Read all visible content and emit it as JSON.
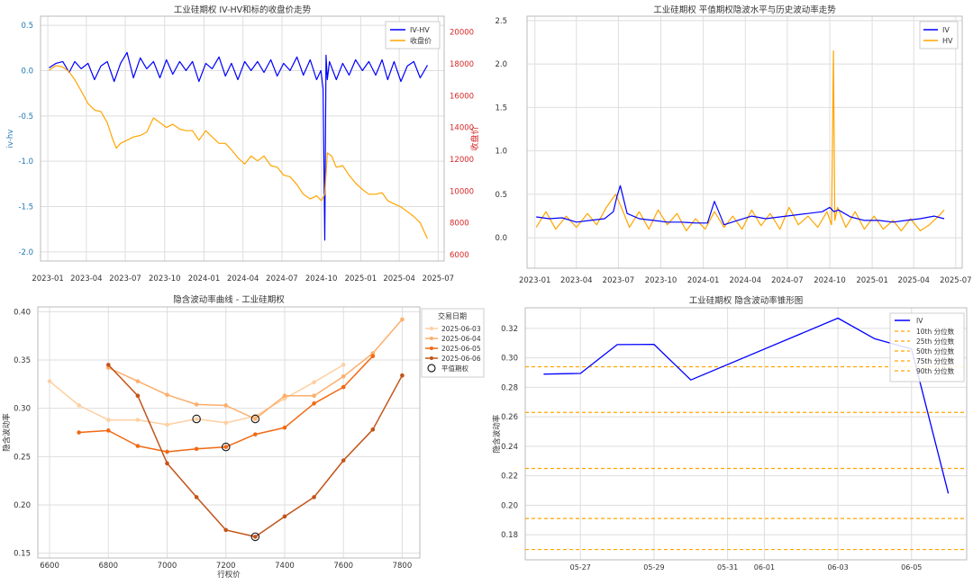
{
  "chart_data": [
    {
      "type": "line",
      "title": "工业硅期权 IV-HV和标的收盘价走势",
      "xlabel": "",
      "ylabel_left": "iv-hv",
      "ylabel_right": "收盘价",
      "x_ticks": [
        "2023-01",
        "2023-04",
        "2023-07",
        "2023-10",
        "2024-01",
        "2024-04",
        "2024-07",
        "2024-10",
        "2025-01",
        "2025-04",
        "2025-07"
      ],
      "ylim_left": [
        -2.1,
        0.6
      ],
      "yticks_left": [
        0.5,
        0.0,
        -0.5,
        -1.0,
        -1.5,
        -2.0
      ],
      "ylim_right": [
        5600,
        21000
      ],
      "yticks_right": [
        20000,
        18000,
        16000,
        14000,
        12000,
        10000,
        8000,
        6000
      ],
      "grid": true,
      "legend": "top-right",
      "colors": {
        "left_axis": "#1f77b4",
        "right_axis": "#d62728"
      },
      "series": [
        {
          "name": "IV-HV",
          "color": "#0000ff",
          "axis": "left",
          "x": [
            "2023-01-04",
            "2023-01-20",
            "2023-02-05",
            "2023-02-20",
            "2023-03-05",
            "2023-03-20",
            "2023-04-05",
            "2023-04-20",
            "2023-05-05",
            "2023-05-20",
            "2023-06-05",
            "2023-06-20",
            "2023-07-05",
            "2023-07-20",
            "2023-08-05",
            "2023-08-20",
            "2023-09-05",
            "2023-09-20",
            "2023-10-05",
            "2023-10-20",
            "2023-11-05",
            "2023-11-20",
            "2023-12-05",
            "2023-12-20",
            "2024-01-05",
            "2024-01-20",
            "2024-02-05",
            "2024-02-20",
            "2024-03-05",
            "2024-03-20",
            "2024-04-05",
            "2024-04-20",
            "2024-05-05",
            "2024-05-20",
            "2024-06-05",
            "2024-06-20",
            "2024-07-05",
            "2024-07-20",
            "2024-08-05",
            "2024-08-20",
            "2024-09-05",
            "2024-09-20",
            "2024-09-30",
            "2024-10-05",
            "2024-10-09",
            "2024-10-12",
            "2024-10-15",
            "2024-10-20",
            "2024-11-05",
            "2024-11-20",
            "2024-12-05",
            "2024-12-20",
            "2025-01-05",
            "2025-01-20",
            "2025-02-05",
            "2025-02-20",
            "2025-03-05",
            "2025-03-20",
            "2025-04-05",
            "2025-04-20",
            "2025-05-05",
            "2025-05-20",
            "2025-06-06"
          ],
          "values": [
            0.03,
            0.08,
            0.1,
            -0.02,
            0.1,
            0.02,
            0.08,
            -0.1,
            0.05,
            0.1,
            -0.12,
            0.08,
            0.2,
            -0.08,
            0.14,
            0.02,
            0.1,
            -0.08,
            0.12,
            -0.04,
            0.1,
            0.0,
            0.1,
            -0.12,
            0.08,
            0.02,
            0.15,
            -0.06,
            0.08,
            -0.1,
            0.1,
            0.0,
            0.1,
            -0.02,
            0.12,
            -0.06,
            0.08,
            0.0,
            0.15,
            -0.05,
            0.12,
            -0.1,
            0.0,
            -0.2,
            -1.87,
            0.17,
            -0.1,
            0.1,
            -0.1,
            0.08,
            -0.05,
            0.12,
            0.0,
            0.1,
            -0.05,
            0.12,
            -0.1,
            0.1,
            -0.12,
            0.05,
            0.1,
            -0.08,
            0.06
          ]
        },
        {
          "name": "收盘价",
          "color": "#ffa500",
          "axis": "right",
          "x": [
            "2023-01-04",
            "2023-01-20",
            "2023-02-05",
            "2023-02-20",
            "2023-03-05",
            "2023-03-20",
            "2023-04-05",
            "2023-04-20",
            "2023-05-05",
            "2023-05-20",
            "2023-06-01",
            "2023-06-10",
            "2023-06-20",
            "2023-07-05",
            "2023-07-20",
            "2023-08-05",
            "2023-08-20",
            "2023-09-05",
            "2023-09-20",
            "2023-10-05",
            "2023-10-20",
            "2023-11-05",
            "2023-11-20",
            "2023-12-05",
            "2023-12-20",
            "2024-01-05",
            "2024-01-20",
            "2024-02-05",
            "2024-02-20",
            "2024-03-05",
            "2024-03-20",
            "2024-04-05",
            "2024-04-20",
            "2024-05-05",
            "2024-05-20",
            "2024-06-05",
            "2024-06-20",
            "2024-07-05",
            "2024-07-20",
            "2024-08-05",
            "2024-08-20",
            "2024-09-05",
            "2024-09-20",
            "2024-10-01",
            "2024-10-09",
            "2024-10-15",
            "2024-10-25",
            "2024-11-05",
            "2024-11-20",
            "2024-12-05",
            "2024-12-20",
            "2025-01-05",
            "2025-01-20",
            "2025-02-05",
            "2025-02-20",
            "2025-03-05",
            "2025-03-20",
            "2025-04-05",
            "2025-04-20",
            "2025-05-05",
            "2025-05-20",
            "2025-06-06"
          ],
          "values": [
            17600,
            17900,
            17800,
            17500,
            17000,
            16300,
            15500,
            15100,
            15000,
            14300,
            13300,
            12700,
            13000,
            13200,
            13400,
            13500,
            13700,
            14600,
            14300,
            14000,
            14200,
            13900,
            13800,
            13800,
            13200,
            13800,
            13400,
            13000,
            13000,
            12600,
            12100,
            11700,
            12200,
            11900,
            12200,
            11600,
            11500,
            11000,
            10900,
            10400,
            9800,
            9500,
            9700,
            9400,
            9800,
            12400,
            12200,
            11500,
            11600,
            11000,
            10500,
            10100,
            9800,
            9800,
            9900,
            9400,
            9200,
            9000,
            8700,
            8400,
            8000,
            7000
          ]
        }
      ]
    },
    {
      "type": "line",
      "title": "工业硅期权 平值期权隐波水平与历史波动率走势",
      "xlabel": "",
      "ylabel": "",
      "x_ticks": [
        "2023-01",
        "2023-04",
        "2023-07",
        "2023-10",
        "2024-01",
        "2024-04",
        "2024-07",
        "2024-10",
        "2025-01",
        "2025-04",
        "2025-07"
      ],
      "ylim": [
        -0.35,
        2.55
      ],
      "yticks": [
        0.0,
        0.5,
        1.0,
        1.5,
        2.0,
        2.5
      ],
      "grid": true,
      "legend": "top-right",
      "series": [
        {
          "name": "IV",
          "color": "#0000ff",
          "x": [
            "2023-01-04",
            "2023-02-01",
            "2023-03-01",
            "2023-04-01",
            "2023-05-01",
            "2023-06-01",
            "2023-06-20",
            "2023-06-28",
            "2023-07-05",
            "2023-07-20",
            "2023-08-15",
            "2023-09-15",
            "2023-10-15",
            "2023-11-15",
            "2023-12-15",
            "2024-01-10",
            "2024-01-25",
            "2024-02-15",
            "2024-03-15",
            "2024-04-15",
            "2024-05-15",
            "2024-06-15",
            "2024-07-15",
            "2024-08-15",
            "2024-09-15",
            "2024-10-01",
            "2024-10-10",
            "2024-10-20",
            "2024-11-15",
            "2024-12-15",
            "2025-01-15",
            "2025-02-15",
            "2025-03-15",
            "2025-04-15",
            "2025-05-15",
            "2025-06-06"
          ],
          "values": [
            0.24,
            0.22,
            0.23,
            0.18,
            0.2,
            0.22,
            0.3,
            0.48,
            0.6,
            0.28,
            0.22,
            0.2,
            0.18,
            0.18,
            0.17,
            0.17,
            0.42,
            0.15,
            0.2,
            0.25,
            0.22,
            0.24,
            0.26,
            0.28,
            0.3,
            0.35,
            0.3,
            0.32,
            0.24,
            0.2,
            0.2,
            0.18,
            0.2,
            0.22,
            0.25,
            0.22
          ]
        },
        {
          "name": "HV",
          "color": "#ffa500",
          "x": [
            "2023-01-04",
            "2023-01-25",
            "2023-02-15",
            "2023-03-10",
            "2023-04-01",
            "2023-04-25",
            "2023-05-15",
            "2023-06-05",
            "2023-06-25",
            "2023-07-05",
            "2023-07-25",
            "2023-08-15",
            "2023-09-05",
            "2023-09-25",
            "2023-10-15",
            "2023-11-05",
            "2023-11-25",
            "2023-12-15",
            "2024-01-05",
            "2024-01-25",
            "2024-02-15",
            "2024-03-05",
            "2024-03-25",
            "2024-04-15",
            "2024-05-05",
            "2024-05-25",
            "2024-06-15",
            "2024-07-05",
            "2024-07-25",
            "2024-08-15",
            "2024-09-05",
            "2024-09-25",
            "2024-10-05",
            "2024-10-09",
            "2024-10-12",
            "2024-10-18",
            "2024-11-05",
            "2024-11-25",
            "2024-12-15",
            "2025-01-05",
            "2025-01-25",
            "2025-02-15",
            "2025-03-05",
            "2025-03-25",
            "2025-04-15",
            "2025-05-05",
            "2025-05-25",
            "2025-06-06"
          ],
          "values": [
            0.12,
            0.3,
            0.1,
            0.25,
            0.12,
            0.28,
            0.15,
            0.35,
            0.5,
            0.38,
            0.12,
            0.3,
            0.1,
            0.32,
            0.15,
            0.28,
            0.08,
            0.22,
            0.1,
            0.3,
            0.12,
            0.25,
            0.1,
            0.32,
            0.14,
            0.28,
            0.1,
            0.35,
            0.15,
            0.25,
            0.12,
            0.3,
            0.15,
            2.15,
            0.2,
            0.35,
            0.12,
            0.3,
            0.1,
            0.25,
            0.1,
            0.2,
            0.08,
            0.22,
            0.08,
            0.15,
            0.25,
            0.32
          ]
        }
      ]
    },
    {
      "type": "line",
      "title": "隐含波动率曲线 - 工业硅期权",
      "xlabel": "行权价",
      "ylabel": "隐含波动率",
      "xlim": [
        6560,
        7860
      ],
      "x_ticks": [
        6600,
        6800,
        7000,
        7200,
        7400,
        7600,
        7800
      ],
      "ylim": [
        0.145,
        0.405
      ],
      "yticks": [
        0.15,
        0.2,
        0.25,
        0.3,
        0.35,
        0.4
      ],
      "grid": true,
      "legend": "outside-right",
      "legend_title": "交易日期",
      "atm_label": "平值期权",
      "series": [
        {
          "name": "2025-06-03",
          "color": "#fdd0a2",
          "x": [
            6600,
            6700,
            6800,
            6900,
            7000,
            7100,
            7200,
            7300,
            7400,
            7500,
            7600
          ],
          "values": [
            0.328,
            0.303,
            0.288,
            0.288,
            0.283,
            0.289,
            0.285,
            0.292,
            0.31,
            0.327,
            0.345
          ],
          "atm": [
            7100,
            0.289
          ]
        },
        {
          "name": "2025-06-04",
          "color": "#fdae6b",
          "x": [
            6800,
            6900,
            7000,
            7100,
            7200,
            7300,
            7400,
            7500,
            7600,
            7700,
            7800
          ],
          "values": [
            0.342,
            0.328,
            0.314,
            0.304,
            0.303,
            0.289,
            0.313,
            0.313,
            0.333,
            0.357,
            0.392
          ],
          "atm": [
            7300,
            0.289
          ]
        },
        {
          "name": "2025-06-05",
          "color": "#f16913",
          "x": [
            6700,
            6800,
            6900,
            7000,
            7100,
            7200,
            7300,
            7400,
            7500,
            7600,
            7700
          ],
          "values": [
            0.275,
            0.277,
            0.261,
            0.255,
            0.258,
            0.26,
            0.273,
            0.28,
            0.305,
            0.322,
            0.354
          ],
          "atm": [
            7200,
            0.26
          ]
        },
        {
          "name": "2025-06-06",
          "color": "#c2541a",
          "x": [
            6800,
            6900,
            7000,
            7100,
            7200,
            7300,
            7400,
            7500,
            7600,
            7700,
            7800
          ],
          "values": [
            0.345,
            0.313,
            0.243,
            0.208,
            0.174,
            0.167,
            0.188,
            0.208,
            0.246,
            0.278,
            0.334
          ],
          "atm": [
            7300,
            0.167
          ]
        }
      ]
    },
    {
      "type": "line",
      "title": "工业硅期权 隐含波动率锥形图",
      "xlabel": "",
      "ylabel": "隐含波动率",
      "x_ticks": [
        "05-27",
        "05-29",
        "05-31",
        "06-01",
        "06-03",
        "06-05"
      ],
      "ylim": [
        0.163,
        0.334
      ],
      "yticks": [
        0.18,
        0.2,
        0.22,
        0.24,
        0.26,
        0.28,
        0.3,
        0.32
      ],
      "grid": true,
      "legend": "top-right",
      "series": [
        {
          "name": "IV",
          "color": "#0000ff",
          "x": [
            "2025-05-26",
            "2025-05-27",
            "2025-05-28",
            "2025-05-29",
            "2025-05-30",
            "2025-06-03",
            "2025-06-04",
            "2025-06-05",
            "2025-06-06"
          ],
          "values": [
            0.289,
            0.2895,
            0.309,
            0.3092,
            0.285,
            0.327,
            0.313,
            0.306,
            0.208
          ]
        }
      ],
      "quantiles": [
        {
          "name": "10th 分位数",
          "value": 0.17
        },
        {
          "name": "25th 分位数",
          "value": 0.191
        },
        {
          "name": "50th 分位数",
          "value": 0.225
        },
        {
          "name": "75th 分位数",
          "value": 0.263
        },
        {
          "name": "90th 分位数",
          "value": 0.294
        }
      ],
      "quantile_color": "#ffa500"
    }
  ]
}
